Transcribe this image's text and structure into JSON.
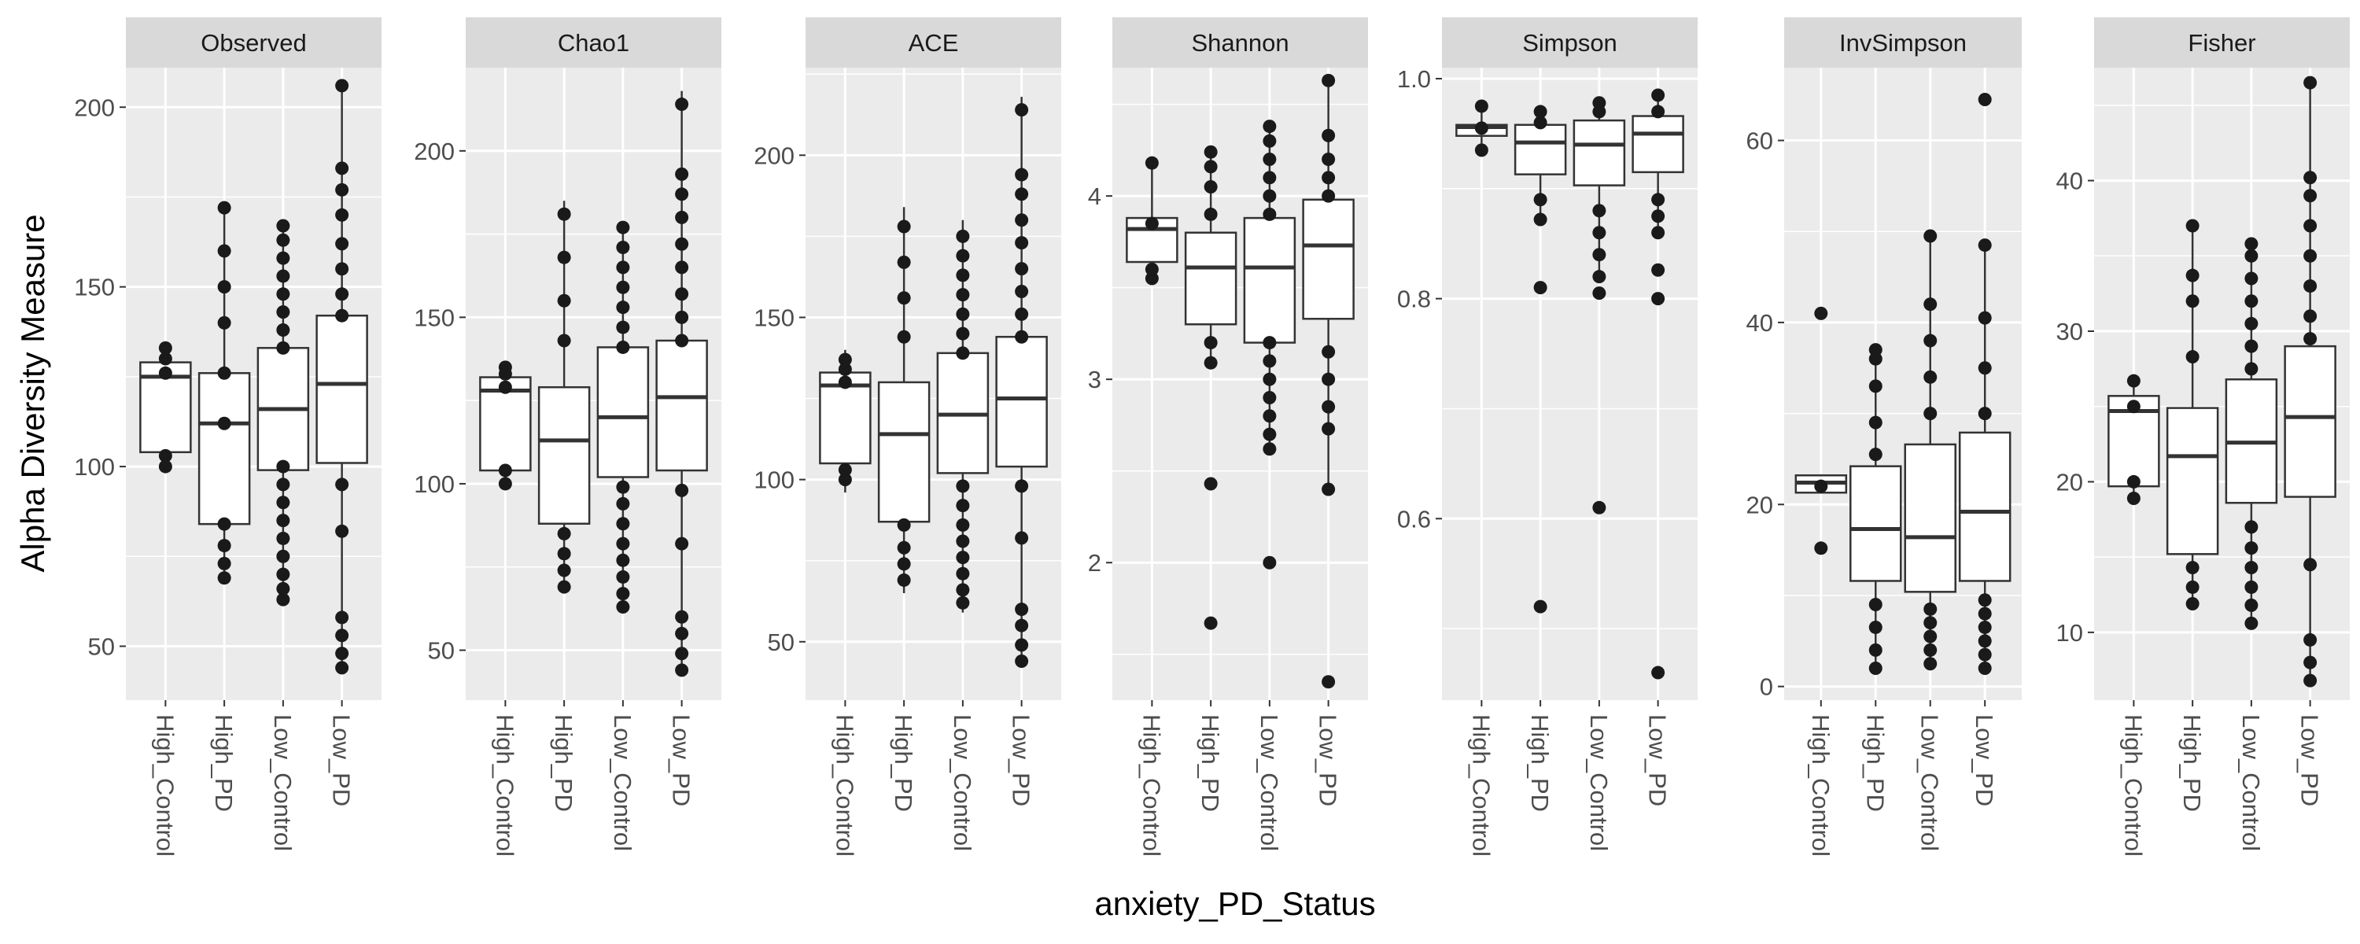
{
  "chart_data": {
    "type": "boxplot",
    "title": "",
    "xlabel": "anxiety_PD_Status",
    "ylabel": "Alpha Diversity Measure",
    "categories": [
      "High_Control",
      "High_PD",
      "Low_Control",
      "Low_PD"
    ],
    "grid": true,
    "legend": "none",
    "colors": {
      "panel_bg": "#ebebeb",
      "strip_bg": "#d9d9d9",
      "grid": "#ffffff",
      "box": "#333333",
      "point": "#1a1a1a"
    },
    "panels": [
      {
        "name": "Observed",
        "ylim": [
          35,
          211
        ],
        "yticks": [
          50,
          100,
          150,
          200
        ],
        "tick_labels": [
          "50",
          "100",
          "150",
          "200"
        ],
        "boxes": [
          {
            "category": "High_Control",
            "q1": 104,
            "median": 125,
            "q3": 129,
            "whisker_low": 100,
            "whisker_high": 133
          },
          {
            "category": "High_PD",
            "q1": 84,
            "median": 112,
            "q3": 126,
            "whisker_low": 69,
            "whisker_high": 172
          },
          {
            "category": "Low_Control",
            "q1": 99,
            "median": 116,
            "q3": 133,
            "whisker_low": 63,
            "whisker_high": 167
          },
          {
            "category": "Low_PD",
            "q1": 101,
            "median": 123,
            "q3": 142,
            "whisker_low": 44,
            "whisker_high": 206
          }
        ],
        "points": {
          "High_Control": [
            100,
            103,
            126,
            130,
            133
          ],
          "High_PD": [
            69,
            73,
            78,
            84,
            112,
            126,
            140,
            150,
            160,
            172
          ],
          "Low_Control": [
            63,
            66,
            70,
            75,
            80,
            85,
            90,
            95,
            100,
            133,
            138,
            143,
            148,
            153,
            158,
            163,
            167
          ],
          "Low_PD": [
            44,
            48,
            53,
            58,
            82,
            95,
            142,
            148,
            155,
            162,
            170,
            177,
            183,
            206
          ]
        }
      },
      {
        "name": "Chao1",
        "ylim": [
          35,
          225
        ],
        "yticks": [
          50,
          100,
          150,
          200
        ],
        "tick_labels": [
          "50",
          "100",
          "150",
          "200"
        ],
        "boxes": [
          {
            "category": "High_Control",
            "q1": 104,
            "median": 128,
            "q3": 132,
            "whisker_low": 100,
            "whisker_high": 135
          },
          {
            "category": "High_PD",
            "q1": 88,
            "median": 113,
            "q3": 129,
            "whisker_low": 69,
            "whisker_high": 185
          },
          {
            "category": "Low_Control",
            "q1": 102,
            "median": 120,
            "q3": 141,
            "whisker_low": 63,
            "whisker_high": 177
          },
          {
            "category": "Low_PD",
            "q1": 104,
            "median": 126,
            "q3": 143,
            "whisker_low": 44,
            "whisker_high": 218
          }
        ],
        "points": {
          "High_Control": [
            100,
            104,
            129,
            133,
            135
          ],
          "High_PD": [
            69,
            74,
            79,
            85,
            143,
            155,
            168,
            181
          ],
          "Low_Control": [
            63,
            67,
            72,
            77,
            82,
            88,
            94,
            99,
            141,
            147,
            153,
            159,
            165,
            171,
            177
          ],
          "Low_PD": [
            44,
            49,
            55,
            60,
            82,
            98,
            143,
            150,
            157,
            165,
            172,
            180,
            187,
            193,
            214
          ]
        }
      },
      {
        "name": "ACE",
        "ylim": [
          32,
          227
        ],
        "yticks": [
          50,
          100,
          150,
          200
        ],
        "tick_labels": [
          "50",
          "100",
          "150",
          "200"
        ],
        "boxes": [
          {
            "category": "High_Control",
            "q1": 105,
            "median": 129,
            "q3": 133,
            "whisker_low": 96,
            "whisker_high": 140
          },
          {
            "category": "High_PD",
            "q1": 87,
            "median": 114,
            "q3": 130,
            "whisker_low": 65,
            "whisker_high": 184
          },
          {
            "category": "Low_Control",
            "q1": 102,
            "median": 120,
            "q3": 139,
            "whisker_low": 59,
            "whisker_high": 180
          },
          {
            "category": "Low_PD",
            "q1": 104,
            "median": 125,
            "q3": 144,
            "whisker_low": 42,
            "whisker_high": 218
          }
        ],
        "points": {
          "High_Control": [
            100,
            103,
            130,
            134,
            137
          ],
          "High_PD": [
            69,
            74,
            79,
            86,
            144,
            156,
            167,
            178
          ],
          "Low_Control": [
            62,
            66,
            71,
            76,
            81,
            86,
            92,
            98,
            139,
            145,
            151,
            157,
            163,
            169,
            175
          ],
          "Low_PD": [
            44,
            49,
            55,
            60,
            82,
            98,
            144,
            151,
            158,
            165,
            173,
            180,
            188,
            194,
            214
          ]
        }
      },
      {
        "name": "Shannon",
        "ylim": [
          1.25,
          4.7
        ],
        "yticks": [
          2,
          3,
          4
        ],
        "tick_labels": [
          "2",
          "3",
          "4"
        ],
        "boxes": [
          {
            "category": "High_Control",
            "q1": 3.64,
            "median": 3.82,
            "q3": 3.88,
            "whisker_low": 3.55,
            "whisker_high": 4.18
          },
          {
            "category": "High_PD",
            "q1": 3.3,
            "median": 3.61,
            "q3": 3.8,
            "whisker_low": 3.1,
            "whisker_high": 4.24
          },
          {
            "category": "Low_Control",
            "q1": 3.2,
            "median": 3.61,
            "q3": 3.88,
            "whisker_low": 2.62,
            "whisker_high": 4.38
          },
          {
            "category": "Low_PD",
            "q1": 3.33,
            "median": 3.73,
            "q3": 3.98,
            "whisker_low": 2.4,
            "whisker_high": 4.63
          }
        ],
        "points": {
          "High_Control": [
            3.55,
            3.6,
            3.85,
            4.18
          ],
          "High_PD": [
            1.67,
            2.43,
            3.09,
            3.2,
            3.9,
            4.05,
            4.16,
            4.24
          ],
          "Low_Control": [
            2.0,
            2.62,
            2.7,
            2.8,
            2.9,
            3.0,
            3.1,
            3.2,
            3.9,
            4.0,
            4.1,
            4.2,
            4.3,
            4.38
          ],
          "Low_PD": [
            1.35,
            2.4,
            2.73,
            2.85,
            3.0,
            3.15,
            4.0,
            4.1,
            4.2,
            4.33,
            4.63
          ]
        }
      },
      {
        "name": "Simpson",
        "ylim": [
          0.435,
          1.01
        ],
        "yticks": [
          0.6,
          0.8,
          1.0
        ],
        "tick_labels": [
          "0.6",
          "0.8",
          "1.0"
        ],
        "boxes": [
          {
            "category": "High_Control",
            "q1": 0.948,
            "median": 0.956,
            "q3": 0.958,
            "whisker_low": 0.935,
            "whisker_high": 0.975
          },
          {
            "category": "High_PD",
            "q1": 0.913,
            "median": 0.942,
            "q3": 0.958,
            "whisker_low": 0.875,
            "whisker_high": 0.97
          },
          {
            "category": "Low_Control",
            "q1": 0.903,
            "median": 0.94,
            "q3": 0.962,
            "whisker_low": 0.815,
            "whisker_high": 0.978
          },
          {
            "category": "Low_PD",
            "q1": 0.915,
            "median": 0.95,
            "q3": 0.966,
            "whisker_low": 0.86,
            "whisker_high": 0.985
          }
        ],
        "points": {
          "High_Control": [
            0.935,
            0.955,
            0.975
          ],
          "High_PD": [
            0.52,
            0.81,
            0.872,
            0.89,
            0.96,
            0.97
          ],
          "Low_Control": [
            0.61,
            0.805,
            0.82,
            0.84,
            0.86,
            0.88,
            0.97,
            0.978
          ],
          "Low_PD": [
            0.46,
            0.8,
            0.826,
            0.86,
            0.875,
            0.89,
            0.97,
            0.985
          ]
        }
      },
      {
        "name": "InvSimpson",
        "ylim": [
          -1.5,
          68
        ],
        "yticks": [
          0,
          20,
          40,
          60
        ],
        "tick_labels": [
          "0",
          "20",
          "40",
          "60"
        ],
        "boxes": [
          {
            "category": "High_Control",
            "q1": 21.3,
            "median": 22.4,
            "q3": 23.2,
            "whisker_low": 21.3,
            "whisker_high": 23.2
          },
          {
            "category": "High_PD",
            "q1": 11.6,
            "median": 17.3,
            "q3": 24.2,
            "whisker_low": 2.0,
            "whisker_high": 37.0
          },
          {
            "category": "Low_Control",
            "q1": 10.4,
            "median": 16.4,
            "q3": 26.6,
            "whisker_low": 2.5,
            "whisker_high": 49.5
          },
          {
            "category": "Low_PD",
            "q1": 11.6,
            "median": 19.2,
            "q3": 27.9,
            "whisker_low": 2.0,
            "whisker_high": 48.5
          }
        ],
        "points": {
          "High_Control": [
            15.2,
            22.0,
            41.0
          ],
          "High_PD": [
            2.0,
            4.0,
            6.5,
            9.0,
            25.5,
            29.0,
            33.0,
            36.0,
            37.0
          ],
          "Low_Control": [
            2.5,
            4.0,
            5.5,
            7.0,
            8.5,
            30.0,
            34.0,
            38.0,
            42.0,
            49.5
          ],
          "Low_PD": [
            2.0,
            3.5,
            5.0,
            6.5,
            8.0,
            9.5,
            30.0,
            35.0,
            40.5,
            48.5,
            64.5
          ]
        }
      },
      {
        "name": "Fisher",
        "ylim": [
          5.5,
          47.5
        ],
        "yticks": [
          10,
          20,
          30,
          40
        ],
        "tick_labels": [
          "10",
          "20",
          "30",
          "40"
        ],
        "boxes": [
          {
            "category": "High_Control",
            "q1": 19.7,
            "median": 24.7,
            "q3": 25.7,
            "whisker_low": 18.9,
            "whisker_high": 26.7
          },
          {
            "category": "High_PD",
            "q1": 15.2,
            "median": 21.7,
            "q3": 24.9,
            "whisker_low": 11.9,
            "whisker_high": 37.0
          },
          {
            "category": "Low_Control",
            "q1": 18.6,
            "median": 22.6,
            "q3": 26.8,
            "whisker_low": 10.6,
            "whisker_high": 35.8
          },
          {
            "category": "Low_PD",
            "q1": 19.0,
            "median": 24.3,
            "q3": 29.0,
            "whisker_low": 6.8,
            "whisker_high": 46.5
          }
        ],
        "points": {
          "High_Control": [
            18.9,
            20.0,
            25.0,
            26.7
          ],
          "High_PD": [
            11.9,
            13.0,
            14.3,
            28.3,
            32.0,
            33.7,
            37.0
          ],
          "Low_Control": [
            10.6,
            11.8,
            13.0,
            14.3,
            15.6,
            17.0,
            27.5,
            29.0,
            30.5,
            32.0,
            33.5,
            35.0,
            35.8
          ],
          "Low_PD": [
            6.8,
            8.0,
            9.5,
            14.5,
            29.5,
            31.0,
            33.0,
            35.0,
            37.0,
            39.0,
            40.2,
            46.5
          ]
        }
      }
    ]
  }
}
